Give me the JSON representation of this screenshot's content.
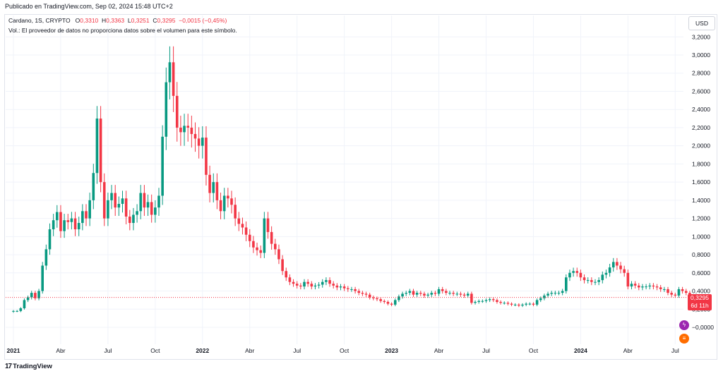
{
  "published_line": "Publicado en TradingView.com, Sep 02, 2024 15:48 UTC+2",
  "legend": {
    "symbol": "Cardano, 1S, CRYPTO",
    "o_label": "O",
    "o_value": "0,3310",
    "h_label": "H",
    "h_value": "0,3363",
    "l_label": "L",
    "l_value": "0,3251",
    "c_label": "C",
    "c_value": "0,3295",
    "change": "−0,0015 (−0,45%)"
  },
  "volume_note": "Vol.: El proveedor de datos no proporciona datos sobre el volumen para este símbolo.",
  "currency": "USD",
  "price_badge": {
    "price": "0,3295",
    "countdown": "6d 11h"
  },
  "branding": "TradingView",
  "icons": [
    "lightning-icon",
    "currency-icon"
  ],
  "colors": {
    "up": "#089981",
    "down": "#f23645",
    "grid": "#f0f3fa",
    "axis_text": "#131722",
    "last_price_line": "#f23645"
  },
  "chart_data": {
    "type": "candlestick",
    "title": "",
    "xlabel": "",
    "ylabel": "",
    "ylim": [
      -0.1,
      3.3
    ],
    "grid": true,
    "interval": "1S",
    "last_price": 0.3295,
    "y_ticks": [
      "−0,0000",
      "0,2000",
      "0,4000",
      "0,6000",
      "0,8000",
      "1,0000",
      "1,2000",
      "1,4000",
      "1,6000",
      "1,8000",
      "2,0000",
      "2,2000",
      "2,4000",
      "2,6000",
      "2,8000",
      "3,0000",
      "3,2000"
    ],
    "y_tick_values": [
      0,
      0.2,
      0.4,
      0.6,
      0.8,
      1.0,
      1.2,
      1.4,
      1.6,
      1.8,
      2.0,
      2.2,
      2.4,
      2.6,
      2.8,
      3.0,
      3.2
    ],
    "x_ticks": [
      {
        "label": "2021",
        "week": 0,
        "bold": true
      },
      {
        "label": "Abr",
        "week": 13,
        "bold": false
      },
      {
        "label": "Jul",
        "week": 26,
        "bold": false
      },
      {
        "label": "Oct",
        "week": 39,
        "bold": false
      },
      {
        "label": "2022",
        "week": 52,
        "bold": true
      },
      {
        "label": "Abr",
        "week": 65,
        "bold": false
      },
      {
        "label": "Jul",
        "week": 78,
        "bold": false
      },
      {
        "label": "Oct",
        "week": 91,
        "bold": false
      },
      {
        "label": "2023",
        "week": 104,
        "bold": true
      },
      {
        "label": "Abr",
        "week": 117,
        "bold": false
      },
      {
        "label": "Jul",
        "week": 130,
        "bold": false
      },
      {
        "label": "Oct",
        "week": 143,
        "bold": false
      },
      {
        "label": "2024",
        "week": 156,
        "bold": true
      },
      {
        "label": "Abr",
        "week": 169,
        "bold": false
      },
      {
        "label": "Jul",
        "week": 182,
        "bold": false
      }
    ],
    "closes": [
      0.18,
      0.18,
      0.21,
      0.3,
      0.33,
      0.38,
      0.32,
      0.4,
      0.68,
      0.86,
      1.08,
      1.18,
      1.27,
      1.06,
      1.18,
      1.16,
      1.2,
      1.08,
      1.15,
      1.28,
      1.2,
      1.4,
      1.7,
      2.3,
      1.6,
      1.2,
      1.4,
      1.48,
      1.32,
      1.36,
      1.42,
      1.22,
      1.15,
      1.24,
      1.28,
      1.48,
      1.32,
      1.38,
      1.24,
      1.32,
      1.45,
      2.1,
      2.7,
      2.92,
      2.55,
      2.2,
      2.15,
      2.22,
      2.2,
      2.13,
      2.08,
      2.0,
      2.09,
      1.68,
      1.48,
      1.6,
      1.4,
      1.28,
      1.45,
      1.42,
      1.35,
      1.2,
      1.14,
      1.1,
      1.02,
      0.95,
      0.88,
      0.85,
      0.82,
      1.2,
      1.05,
      0.92,
      0.86,
      0.75,
      0.62,
      0.55,
      0.5,
      0.48,
      0.46,
      0.45,
      0.5,
      0.48,
      0.45,
      0.46,
      0.47,
      0.5,
      0.52,
      0.48,
      0.46,
      0.44,
      0.45,
      0.43,
      0.42,
      0.42,
      0.4,
      0.38,
      0.37,
      0.36,
      0.33,
      0.32,
      0.31,
      0.29,
      0.28,
      0.26,
      0.25,
      0.3,
      0.34,
      0.37,
      0.38,
      0.4,
      0.36,
      0.38,
      0.37,
      0.35,
      0.36,
      0.38,
      0.37,
      0.42,
      0.4,
      0.38,
      0.38,
      0.37,
      0.37,
      0.36,
      0.35,
      0.37,
      0.27,
      0.28,
      0.29,
      0.29,
      0.3,
      0.31,
      0.3,
      0.28,
      0.27,
      0.27,
      0.26,
      0.25,
      0.25,
      0.24,
      0.25,
      0.26,
      0.26,
      0.25,
      0.3,
      0.32,
      0.35,
      0.37,
      0.38,
      0.38,
      0.38,
      0.4,
      0.55,
      0.6,
      0.62,
      0.6,
      0.55,
      0.52,
      0.52,
      0.5,
      0.5,
      0.52,
      0.58,
      0.6,
      0.66,
      0.72,
      0.68,
      0.64,
      0.6,
      0.45,
      0.48,
      0.46,
      0.44,
      0.45,
      0.45,
      0.46,
      0.45,
      0.44,
      0.42,
      0.42,
      0.38,
      0.36,
      0.35,
      0.42,
      0.4,
      0.38,
      0.34,
      0.33
    ]
  }
}
